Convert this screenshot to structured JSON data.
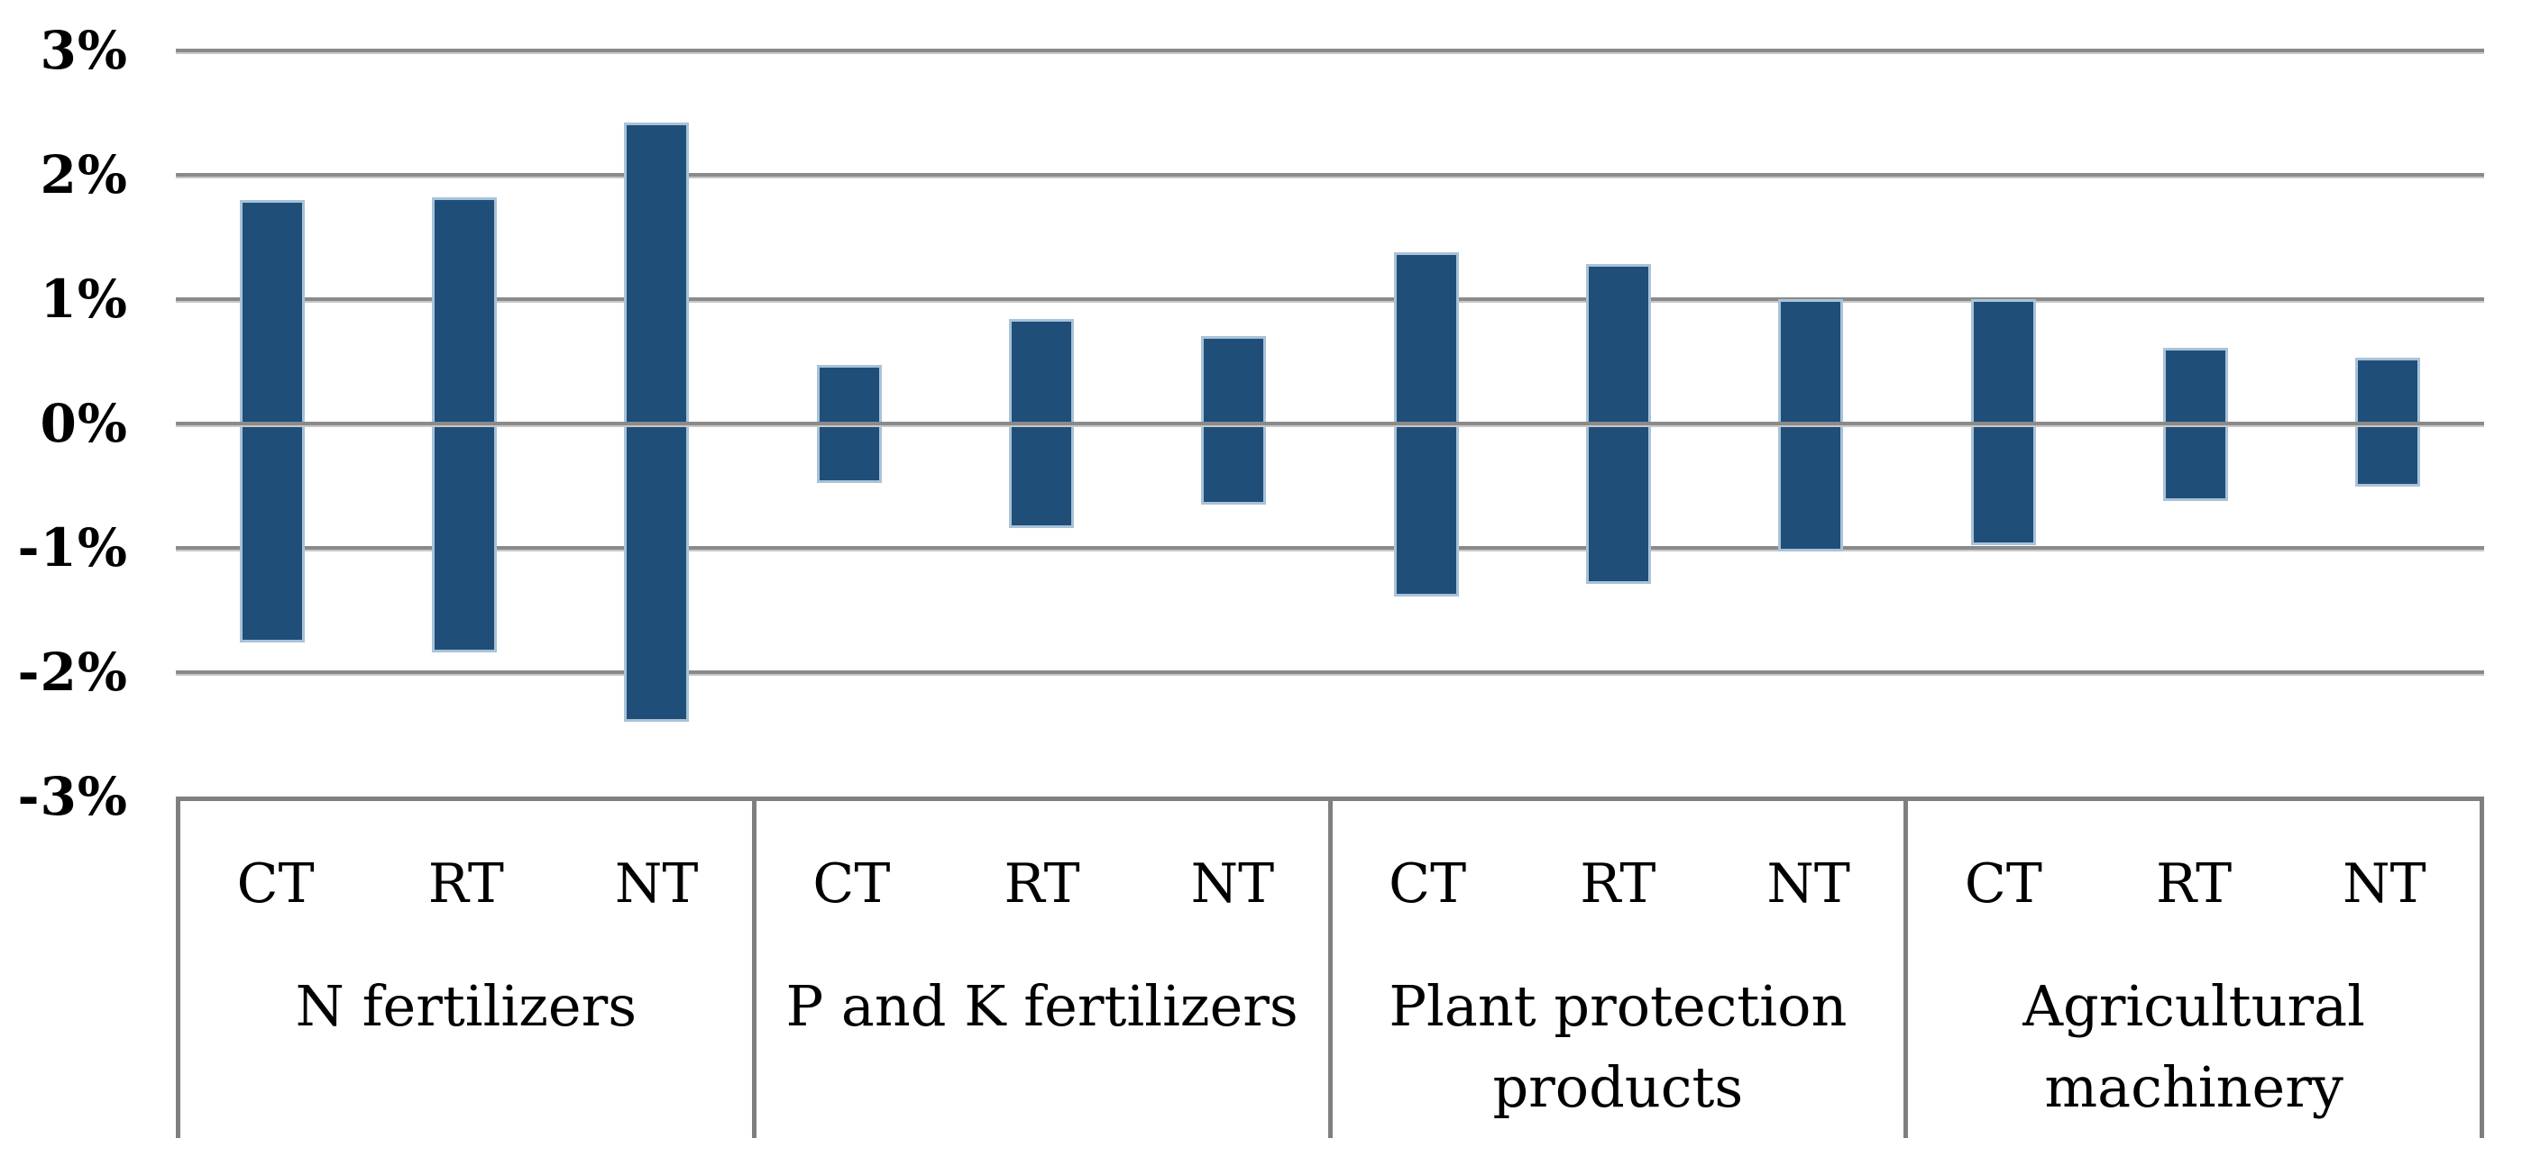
{
  "chart_data": {
    "type": "bar",
    "subtype": "floating-range",
    "title": "",
    "xlabel": "",
    "ylabel": "",
    "grid": true,
    "legend": false,
    "y_axis": {
      "min": -3,
      "max": 3,
      "step": 1,
      "unit": "%",
      "ticks": [
        3,
        2,
        1,
        0,
        -1,
        -2,
        -3
      ],
      "tick_labels": [
        "3%",
        "2%",
        "1%",
        "0%",
        "-1%",
        "-2%",
        "-3%"
      ]
    },
    "groups": [
      {
        "label": "N fertilizers",
        "bars": [
          {
            "treatment": "CT",
            "high": 1.8,
            "low": -1.76
          },
          {
            "treatment": "RT",
            "high": 1.82,
            "low": -1.84
          },
          {
            "treatment": "NT",
            "high": 2.42,
            "low": -2.4
          }
        ]
      },
      {
        "label": "P and K fertilizers",
        "bars": [
          {
            "treatment": "CT",
            "high": 0.47,
            "low": -0.48
          },
          {
            "treatment": "RT",
            "high": 0.84,
            "low": -0.84
          },
          {
            "treatment": "NT",
            "high": 0.7,
            "low": -0.65
          }
        ]
      },
      {
        "label": "Plant protection products",
        "bars": [
          {
            "treatment": "CT",
            "high": 1.38,
            "low": -1.39
          },
          {
            "treatment": "RT",
            "high": 1.28,
            "low": -1.29
          },
          {
            "treatment": "NT",
            "high": 1.0,
            "low": -1.03
          }
        ]
      },
      {
        "label": "Agricultural machinery",
        "bars": [
          {
            "treatment": "CT",
            "high": 1.0,
            "low": -0.98
          },
          {
            "treatment": "RT",
            "high": 0.61,
            "low": -0.62
          },
          {
            "treatment": "NT",
            "high": 0.53,
            "low": -0.51
          }
        ]
      }
    ],
    "colors": {
      "bar_fill": "#1F4E79",
      "bar_border": "#a9c2d8",
      "gridline": "#8a8a8a",
      "axis_line": "#7f7f7f",
      "text": "#000000",
      "background": "#ffffff"
    }
  }
}
